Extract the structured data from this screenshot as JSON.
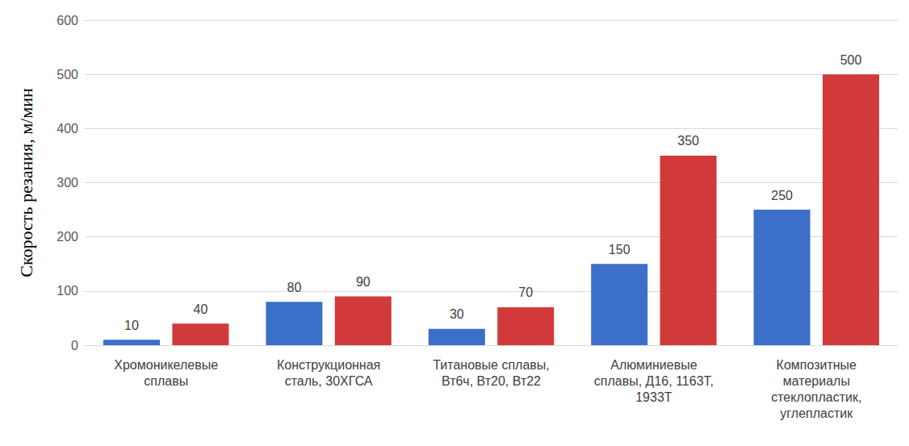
{
  "chart_data": {
    "type": "bar",
    "y_label": "Скорость резания, м/мин",
    "categories": [
      "Хромоникелевые\nсплавы",
      "Конструкционная\nсталь, 30ХГСА",
      "Титановые сплавы,\nВт6ч, Вт20, Вт22",
      "Алюминиевые\nсплавы, Д16, 1163Т,\n1933Т",
      "Композитные\nматериалы\nстеклопластик,\nуглепластик"
    ],
    "series": [
      {
        "color": "#3b6fc9",
        "values": [
          10,
          80,
          30,
          150,
          250
        ]
      },
      {
        "color": "#d2393a",
        "values": [
          40,
          90,
          70,
          350,
          500
        ]
      }
    ],
    "ylim": [
      0,
      600
    ],
    "yticks": [
      0,
      100,
      200,
      300,
      400,
      500,
      600
    ],
    "grid": true,
    "data_labels": true
  }
}
